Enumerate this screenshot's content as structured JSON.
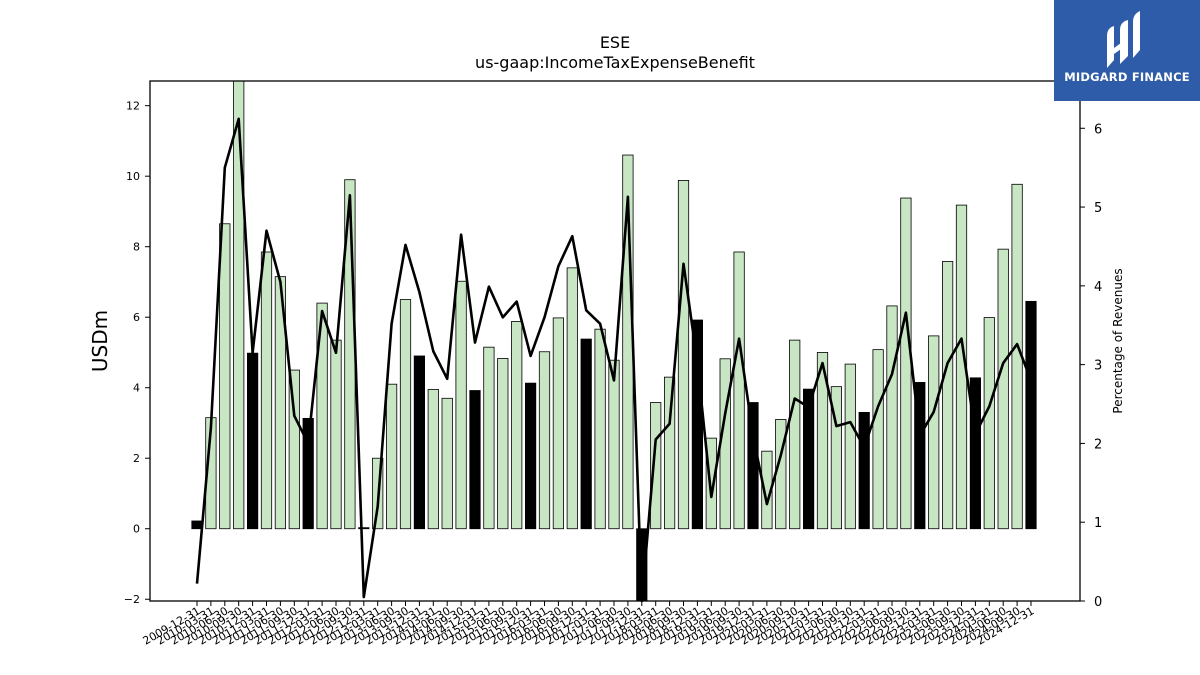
{
  "chart_data": {
    "type": "bar",
    "title": "ESE",
    "subtitle": "us-gaap:IncomeTaxExpenseBenefit",
    "ylabel": "USDm",
    "y2label": "Percentage of Revenues",
    "ylim": [
      -2.05,
      12.7
    ],
    "y2lim": [
      0,
      6.6
    ],
    "yticks": [
      -2,
      0,
      2,
      4,
      6,
      8,
      10,
      12
    ],
    "y2ticks": [
      0,
      1,
      2,
      3,
      4,
      5,
      6
    ],
    "grid": false,
    "categories": [
      "2009-12-31",
      "2010-03-31",
      "2010-06-30",
      "2010-09-30",
      "2010-12-31",
      "2011-03-31",
      "2011-06-30",
      "2011-09-30",
      "2011-12-31",
      "2012-03-31",
      "2012-06-30",
      "2012-09-30",
      "2012-12-31",
      "2013-03-31",
      "2013-06-30",
      "2013-09-30",
      "2013-12-31",
      "2014-03-31",
      "2014-06-30",
      "2014-09-30",
      "2014-12-31",
      "2015-03-31",
      "2015-06-30",
      "2015-09-30",
      "2015-12-31",
      "2016-03-31",
      "2016-06-30",
      "2016-09-30",
      "2016-12-31",
      "2017-03-31",
      "2017-06-30",
      "2017-09-30",
      "2017-12-31",
      "2018-03-31",
      "2018-06-30",
      "2018-09-30",
      "2018-12-31",
      "2019-03-31",
      "2019-06-30",
      "2019-09-30",
      "2019-12-31",
      "2020-03-31",
      "2020-06-30",
      "2020-09-30",
      "2020-12-31",
      "2021-03-31",
      "2021-06-30",
      "2021-09-30",
      "2021-12-31",
      "2022-03-31",
      "2022-06-30",
      "2022-09-30",
      "2022-12-31",
      "2023-03-31",
      "2023-06-30",
      "2023-09-30",
      "2023-12-31",
      "2024-03-31",
      "2024-06-30",
      "2024-09-30",
      "2024-12-31"
    ],
    "series": [
      {
        "kind": "bar",
        "values": [
          0.22,
          3.15,
          8.65,
          12.8,
          4.98,
          7.85,
          7.15,
          4.5,
          3.13,
          6.4,
          5.35,
          9.9,
          0.03,
          2.0,
          4.1,
          6.5,
          4.9,
          3.95,
          3.7,
          7.02,
          3.92,
          5.15,
          4.83,
          5.88,
          4.13,
          5.02,
          5.98,
          7.4,
          5.38,
          5.66,
          4.78,
          10.6,
          -2.6,
          3.58,
          4.3,
          9.88,
          5.92,
          2.57,
          4.82,
          7.85,
          3.58,
          2.2,
          3.1,
          5.35,
          3.96,
          5.0,
          4.03,
          4.67,
          3.3,
          5.08,
          6.32,
          9.38,
          4.15,
          5.47,
          7.58,
          9.18,
          4.28,
          5.99,
          7.93,
          9.77,
          6.45
        ],
        "colors": [
          "#000000",
          "#c8e6c4",
          "#c8e6c4",
          "#c8e6c4",
          "#000000",
          "#c8e6c4",
          "#c8e6c4",
          "#c8e6c4",
          "#000000",
          "#c8e6c4",
          "#c8e6c4",
          "#c8e6c4",
          "#000000",
          "#c8e6c4",
          "#c8e6c4",
          "#c8e6c4",
          "#000000",
          "#c8e6c4",
          "#c8e6c4",
          "#c8e6c4",
          "#000000",
          "#c8e6c4",
          "#c8e6c4",
          "#c8e6c4",
          "#000000",
          "#c8e6c4",
          "#c8e6c4",
          "#c8e6c4",
          "#000000",
          "#c8e6c4",
          "#c8e6c4",
          "#c8e6c4",
          "#000000",
          "#c8e6c4",
          "#c8e6c4",
          "#c8e6c4",
          "#000000",
          "#c8e6c4",
          "#c8e6c4",
          "#c8e6c4",
          "#000000",
          "#c8e6c4",
          "#c8e6c4",
          "#c8e6c4",
          "#000000",
          "#c8e6c4",
          "#c8e6c4",
          "#c8e6c4",
          "#000000",
          "#c8e6c4",
          "#c8e6c4",
          "#c8e6c4",
          "#000000",
          "#c8e6c4",
          "#c8e6c4",
          "#c8e6c4",
          "#000000",
          "#c8e6c4",
          "#c8e6c4",
          "#c8e6c4",
          "#000000"
        ]
      },
      {
        "kind": "line",
        "axis": "right",
        "color": "#000000",
        "values": [
          0.22,
          2.2,
          5.5,
          6.12,
          3.15,
          4.7,
          4.05,
          2.35,
          2.0,
          3.68,
          3.15,
          5.15,
          0.05,
          1.2,
          3.52,
          4.52,
          3.92,
          3.17,
          2.82,
          4.65,
          3.28,
          3.99,
          3.6,
          3.8,
          3.11,
          3.6,
          4.25,
          4.63,
          3.69,
          3.52,
          2.8,
          5.13,
          0.0,
          2.05,
          2.25,
          4.28,
          3.02,
          1.32,
          2.38,
          3.33,
          2.1,
          1.23,
          1.85,
          2.57,
          2.46,
          3.02,
          2.22,
          2.27,
          1.95,
          2.47,
          2.88,
          3.66,
          2.1,
          2.4,
          3.02,
          3.33,
          2.12,
          2.47,
          3.02,
          3.26,
          2.8
        ]
      }
    ]
  },
  "logo": {
    "text": "MIDGARD FINANCE",
    "background": "#2f5ca8"
  }
}
